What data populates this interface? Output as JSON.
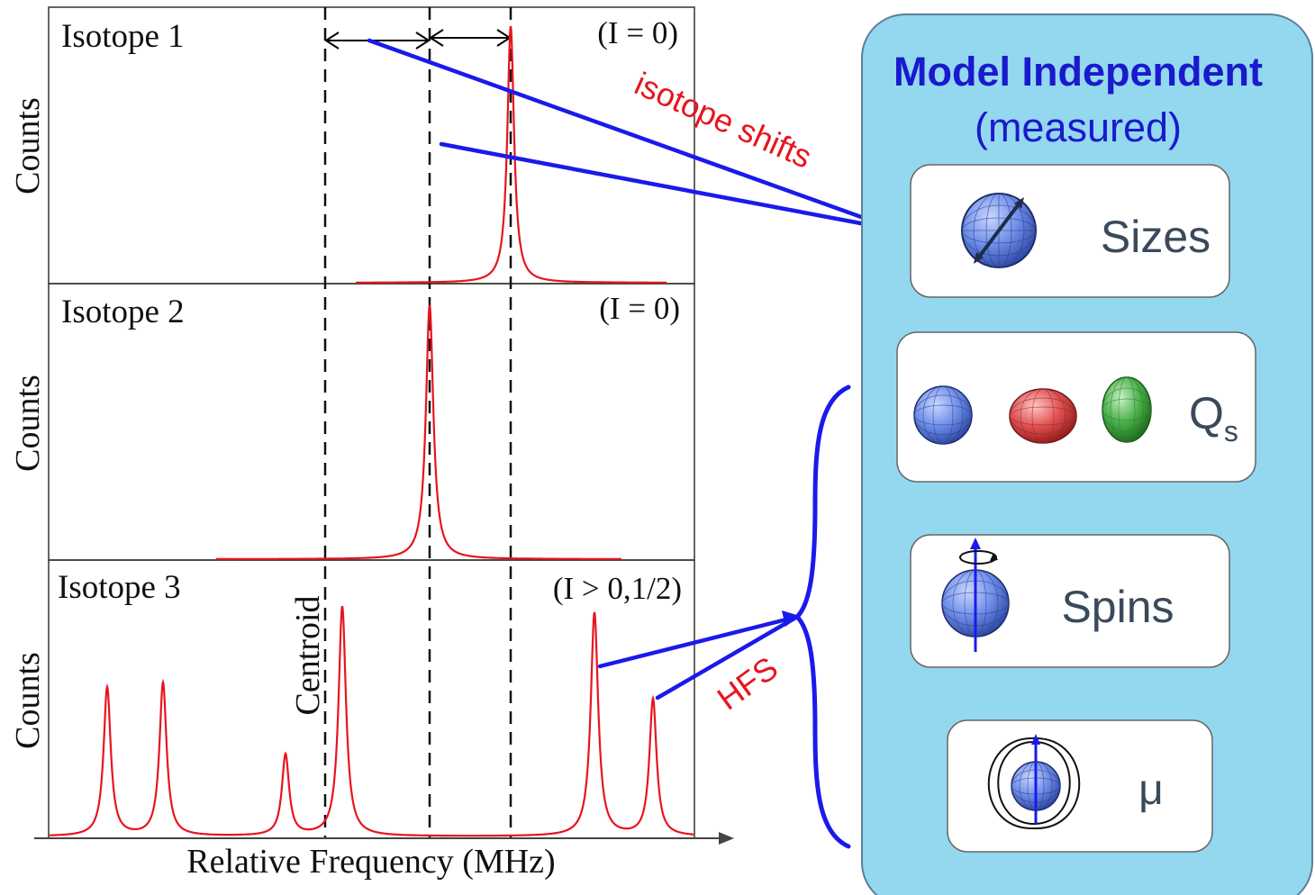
{
  "plots": {
    "panels": [
      {
        "title": "Isotope 1",
        "spin": "(I = 0)",
        "ylabel": "Counts"
      },
      {
        "title": "Isotope 2",
        "spin": "(I = 0)",
        "ylabel": "Counts"
      },
      {
        "title": "Isotope 3",
        "spin": "(I > 0,1/2)",
        "ylabel": "Counts"
      }
    ],
    "xlabel": "Relative Frequency (MHz)",
    "centroid_label": "Centroid"
  },
  "annotations": {
    "isotope_shifts": "isotope shifts",
    "hfs": "HFS"
  },
  "model_panel": {
    "title": "Model Independent",
    "subtitle": "(measured)",
    "items": [
      {
        "label": "Sizes"
      },
      {
        "label": "Q",
        "sub": "s"
      },
      {
        "label": "Spins"
      },
      {
        "label": "μ"
      }
    ]
  },
  "colors": {
    "curve": "#e8141e",
    "arrow": "#1a1aeb",
    "annotation": "#e8141e",
    "panel_fill": "#93d8ef",
    "title": "#1a1acc",
    "sphere_blue": "#6f8ee8",
    "sphere_red": "#e05050",
    "sphere_green": "#4bb04b"
  }
}
